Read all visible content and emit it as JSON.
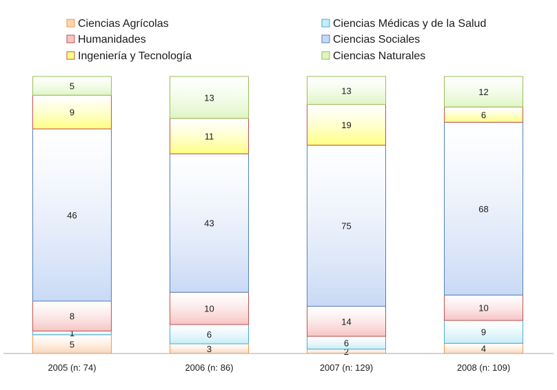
{
  "chart_data": {
    "type": "bar",
    "stacked": true,
    "normalized": true,
    "categories": [
      "2005 (n: 74)",
      "2006 (n: 86)",
      "2007 (n: 129)",
      "2008 (n: 109)"
    ],
    "series": [
      {
        "name": "Ciencias Agrícolas",
        "values": [
          5,
          3,
          2,
          4
        ],
        "color": "#fcd5b5",
        "border": "#f79646"
      },
      {
        "name": "Ciencias Médicas y de la Salud",
        "values": [
          1,
          6,
          6,
          9
        ],
        "color": "#c6ecf7",
        "border": "#4bacc6"
      },
      {
        "name": "Humanidades",
        "values": [
          8,
          10,
          14,
          10
        ],
        "color": "#f7c4c4",
        "border": "#c0504d"
      },
      {
        "name": "Ciencias Sociales",
        "values": [
          46,
          43,
          75,
          68
        ],
        "color": "#c9d9f5",
        "border": "#4f81bd"
      },
      {
        "name": "Ingeniería y Tecnología",
        "values": [
          9,
          11,
          19,
          6
        ],
        "color": "#ffff80",
        "border": "#c0504d"
      },
      {
        "name": "Ciencias Naturales",
        "values": [
          5,
          13,
          13,
          12
        ],
        "color": "#dff5c4",
        "border": "#9bbb59"
      }
    ],
    "legend_position": "top",
    "grid": false
  }
}
